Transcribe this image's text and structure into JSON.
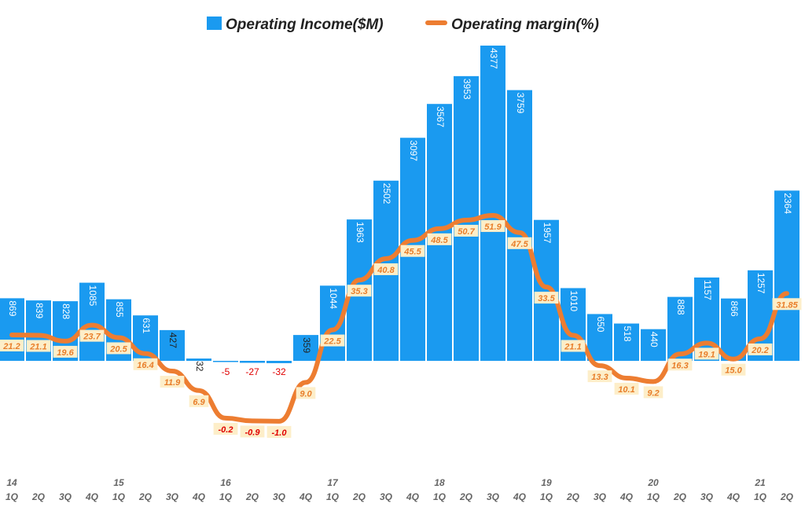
{
  "chart_data": {
    "type": "bar+line",
    "series": [
      {
        "name": "Operating Income($M)",
        "type": "bar",
        "color": "#1a9af0",
        "values": [
          869,
          839,
          828,
          1085,
          855,
          631,
          427,
          32,
          -5,
          -27,
          -32,
          359,
          1044,
          1963,
          2502,
          3097,
          3567,
          3953,
          4377,
          3759,
          1957,
          1010,
          650,
          518,
          440,
          888,
          1157,
          866,
          1257,
          2364
        ],
        "labels": [
          "869",
          "839",
          "828",
          "1085",
          "855",
          "631",
          "427",
          "32",
          "-5",
          "-27",
          "-32",
          "359",
          "1044",
          "1963",
          "2502",
          "3097",
          "3567",
          "3953",
          "4377",
          "3759",
          "1957",
          "1010",
          "650",
          "518",
          "440",
          "888",
          "1157",
          "866",
          "1257",
          "2364"
        ]
      },
      {
        "name": "Operating margin(%)",
        "type": "line",
        "color": "#ed7d31",
        "values": [
          21.2,
          21.1,
          19.6,
          23.7,
          20.5,
          16.4,
          11.9,
          6.9,
          -0.2,
          -0.9,
          -1.0,
          9.0,
          22.5,
          35.3,
          40.8,
          45.5,
          48.5,
          50.7,
          51.9,
          47.5,
          33.5,
          21.1,
          13.3,
          10.1,
          9.2,
          16.3,
          19.1,
          15.0,
          20.2,
          31.85
        ],
        "labels": [
          "21.2",
          "21.1",
          "19.6",
          "23.7",
          "20.5",
          "16.4",
          "11.9",
          "6.9",
          "-0.2",
          "-0.9",
          "-1.0",
          "9.0",
          "22.5",
          "35.3",
          "40.8",
          "45.5",
          "48.5",
          "50.7",
          "51.9",
          "47.5",
          "33.5",
          "21.1",
          "13.3",
          "10.1",
          "9.2",
          "16.3",
          "19.1",
          "15.0",
          "20.2",
          "31.85"
        ]
      }
    ],
    "categories": [
      "1Q",
      "2Q",
      "3Q",
      "4Q",
      "1Q",
      "2Q",
      "3Q",
      "4Q",
      "1Q",
      "2Q",
      "3Q",
      "4Q",
      "1Q",
      "2Q",
      "3Q",
      "4Q",
      "1Q",
      "2Q",
      "3Q",
      "4Q",
      "1Q",
      "2Q",
      "3Q",
      "4Q",
      "1Q",
      "2Q",
      "3Q",
      "4Q",
      "1Q",
      "2Q"
    ],
    "years": [
      "14",
      "15",
      "16",
      "17",
      "18",
      "19",
      "20",
      "21"
    ],
    "year_start_index": [
      0,
      4,
      8,
      12,
      16,
      20,
      24,
      28
    ],
    "legend": [
      "Operating Income($M)",
      "Operating margin(%)"
    ],
    "legend_position": "top-center",
    "title": "",
    "xlabel": "",
    "ylabel": "",
    "grid": false,
    "colors": {
      "bar": "#1a9af0",
      "line": "#ed7d31",
      "margin_label_text": "#e87e2a",
      "margin_label_bg": "#fdeec9",
      "negative_text": "#e00000",
      "axis_text": "#666666"
    }
  }
}
